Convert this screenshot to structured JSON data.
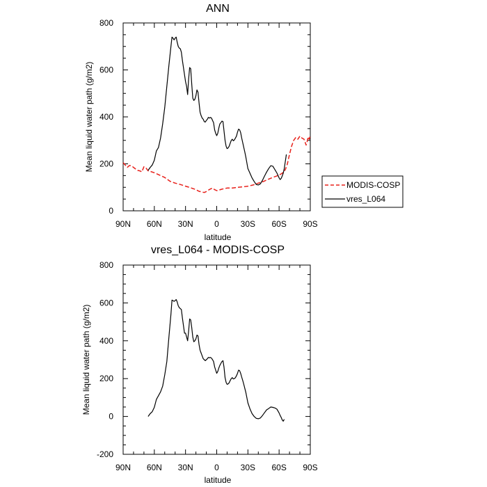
{
  "chart_data": [
    {
      "type": "line",
      "title": "ANN",
      "xlabel": "latitude",
      "ylabel": "Mean liquid water path (g/m2)",
      "xlim": [
        -90,
        90
      ],
      "ylim": [
        0,
        800
      ],
      "xticks": [
        -90,
        -60,
        -30,
        0,
        30,
        60,
        90
      ],
      "xtick_labels": [
        "90N",
        "60N",
        "30N",
        "0",
        "30S",
        "60S",
        "90S"
      ],
      "yticks": [
        0,
        200,
        400,
        600,
        800
      ],
      "ytick_labels": [
        "0",
        "200",
        "400",
        "600",
        "800"
      ],
      "legend_position": "right",
      "series": [
        {
          "name": "MODIS-COSP",
          "color": "#e8201a",
          "dash": "dashed",
          "x": [
            -90,
            -88,
            -86,
            -84,
            -82,
            -80,
            -78,
            -76,
            -74,
            -72,
            -70,
            -68,
            -66,
            -64,
            -60,
            -55,
            -50,
            -45,
            -40,
            -35,
            -30,
            -25,
            -20,
            -17,
            -14,
            -12,
            -10,
            -8,
            -6,
            -4,
            -2,
            0,
            2,
            5,
            10,
            15,
            20,
            25,
            30,
            35,
            40,
            45,
            50,
            55,
            60,
            63,
            66,
            68,
            70,
            72,
            74,
            76,
            78,
            80,
            82,
            84,
            86,
            87,
            88,
            89,
            90
          ],
          "y": [
            205,
            195,
            185,
            193,
            192,
            185,
            178,
            172,
            170,
            166,
            188,
            182,
            170,
            168,
            162,
            152,
            142,
            126,
            118,
            112,
            105,
            98,
            90,
            83,
            80,
            78,
            82,
            88,
            93,
            97,
            90,
            86,
            88,
            92,
            97,
            97,
            100,
            102,
            105,
            110,
            118,
            125,
            135,
            144,
            152,
            160,
            175,
            200,
            240,
            275,
            300,
            312,
            305,
            318,
            310,
            305,
            280,
            295,
            315,
            305,
            320
          ]
        },
        {
          "name": "vres_L064",
          "color": "#000000",
          "dash": "solid",
          "x": [
            -66,
            -64,
            -62,
            -60,
            -58,
            -56,
            -54,
            -52,
            -50,
            -48,
            -46,
            -44,
            -43,
            -42,
            -41,
            -40,
            -39,
            -38,
            -37,
            -36,
            -35,
            -34,
            -33,
            -32,
            -31,
            -30,
            -29,
            -28,
            -27,
            -26,
            -25,
            -24,
            -23,
            -22,
            -21,
            -20,
            -19,
            -18,
            -17,
            -16,
            -15,
            -14,
            -13,
            -12,
            -11,
            -10,
            -9,
            -8,
            -7,
            -6,
            -5,
            -4,
            -3,
            -2,
            -1,
            0,
            1,
            2,
            3,
            4,
            5,
            6,
            7,
            8,
            9,
            10,
            11,
            12,
            13,
            14,
            15,
            16,
            17,
            18,
            19,
            20,
            21,
            22,
            23,
            24,
            25,
            26,
            27,
            28,
            29,
            30,
            32,
            34,
            36,
            38,
            40,
            42,
            44,
            46,
            48,
            50,
            52,
            54,
            56,
            58,
            60,
            61,
            62,
            63,
            64,
            65,
            66,
            67
          ],
          "y": [
            172,
            185,
            195,
            215,
            255,
            270,
            310,
            370,
            440,
            530,
            620,
            700,
            740,
            735,
            728,
            735,
            740,
            718,
            700,
            693,
            690,
            675,
            640,
            610,
            580,
            550,
            530,
            495,
            560,
            610,
            605,
            540,
            480,
            470,
            475,
            490,
            515,
            505,
            460,
            420,
            405,
            395,
            390,
            380,
            378,
            385,
            390,
            398,
            395,
            398,
            395,
            385,
            375,
            345,
            330,
            320,
            330,
            352,
            370,
            375,
            382,
            380,
            340,
            300,
            275,
            265,
            268,
            275,
            288,
            300,
            305,
            298,
            302,
            310,
            318,
            335,
            348,
            345,
            333,
            310,
            290,
            270,
            250,
            230,
            205,
            180,
            160,
            140,
            125,
            112,
            110,
            115,
            130,
            148,
            165,
            180,
            192,
            190,
            175,
            160,
            140,
            133,
            138,
            148,
            160,
            180,
            210,
            240
          ]
        }
      ]
    },
    {
      "type": "line",
      "title": "vres_L064 - MODIS-COSP",
      "xlabel": "latitude",
      "ylabel": "Mean liquid water path (g/m2)",
      "xlim": [
        -90,
        90
      ],
      "ylim": [
        -200,
        800
      ],
      "xticks": [
        -90,
        -60,
        -30,
        0,
        30,
        60,
        90
      ],
      "xtick_labels": [
        "90N",
        "60N",
        "30N",
        "0",
        "30S",
        "60S",
        "90S"
      ],
      "yticks": [
        -200,
        0,
        200,
        400,
        600,
        800
      ],
      "ytick_labels": [
        "-200",
        "0",
        "200",
        "400",
        "600",
        "800"
      ],
      "series": [
        {
          "name": "vres_L064 - MODIS-COSP",
          "color": "#000000",
          "dash": "solid",
          "x": [
            -66,
            -64,
            -62,
            -60,
            -58,
            -56,
            -54,
            -52,
            -50,
            -48,
            -46,
            -44,
            -43,
            -42,
            -41,
            -40,
            -39,
            -38,
            -37,
            -36,
            -35,
            -34,
            -33,
            -32,
            -31,
            -30,
            -29,
            -28,
            -27,
            -26,
            -25,
            -24,
            -23,
            -22,
            -21,
            -20,
            -19,
            -18,
            -17,
            -16,
            -15,
            -14,
            -13,
            -12,
            -11,
            -10,
            -9,
            -8,
            -7,
            -6,
            -5,
            -4,
            -3,
            -2,
            -1,
            0,
            1,
            2,
            3,
            4,
            5,
            6,
            7,
            8,
            9,
            10,
            11,
            12,
            13,
            14,
            15,
            16,
            17,
            18,
            19,
            20,
            21,
            22,
            23,
            24,
            25,
            26,
            27,
            28,
            29,
            30,
            32,
            34,
            36,
            38,
            40,
            42,
            44,
            46,
            48,
            50,
            52,
            54,
            56,
            58,
            60,
            61,
            62,
            63,
            64,
            65
          ],
          "y": [
            0,
            15,
            25,
            48,
            90,
            110,
            130,
            160,
            220,
            290,
            420,
            540,
            615,
            612,
            608,
            612,
            618,
            605,
            585,
            575,
            570,
            565,
            520,
            480,
            440,
            440,
            420,
            400,
            450,
            515,
            510,
            470,
            420,
            395,
            400,
            410,
            430,
            425,
            380,
            350,
            335,
            320,
            305,
            300,
            295,
            300,
            305,
            312,
            310,
            312,
            308,
            300,
            290,
            262,
            245,
            228,
            238,
            256,
            270,
            280,
            290,
            295,
            260,
            205,
            180,
            170,
            172,
            178,
            190,
            200,
            205,
            198,
            200,
            205,
            215,
            228,
            245,
            242,
            228,
            208,
            190,
            170,
            148,
            128,
            100,
            72,
            40,
            15,
            0,
            -10,
            -12,
            -8,
            5,
            20,
            35,
            42,
            50,
            48,
            45,
            38,
            18,
            5,
            -5,
            -18,
            -25,
            -15
          ]
        }
      ]
    }
  ],
  "legend": {
    "items": [
      {
        "label": "MODIS-COSP",
        "color": "#e8201a",
        "dash": "dashed"
      },
      {
        "label": "vres_L064",
        "color": "#000000",
        "dash": "solid"
      }
    ]
  }
}
